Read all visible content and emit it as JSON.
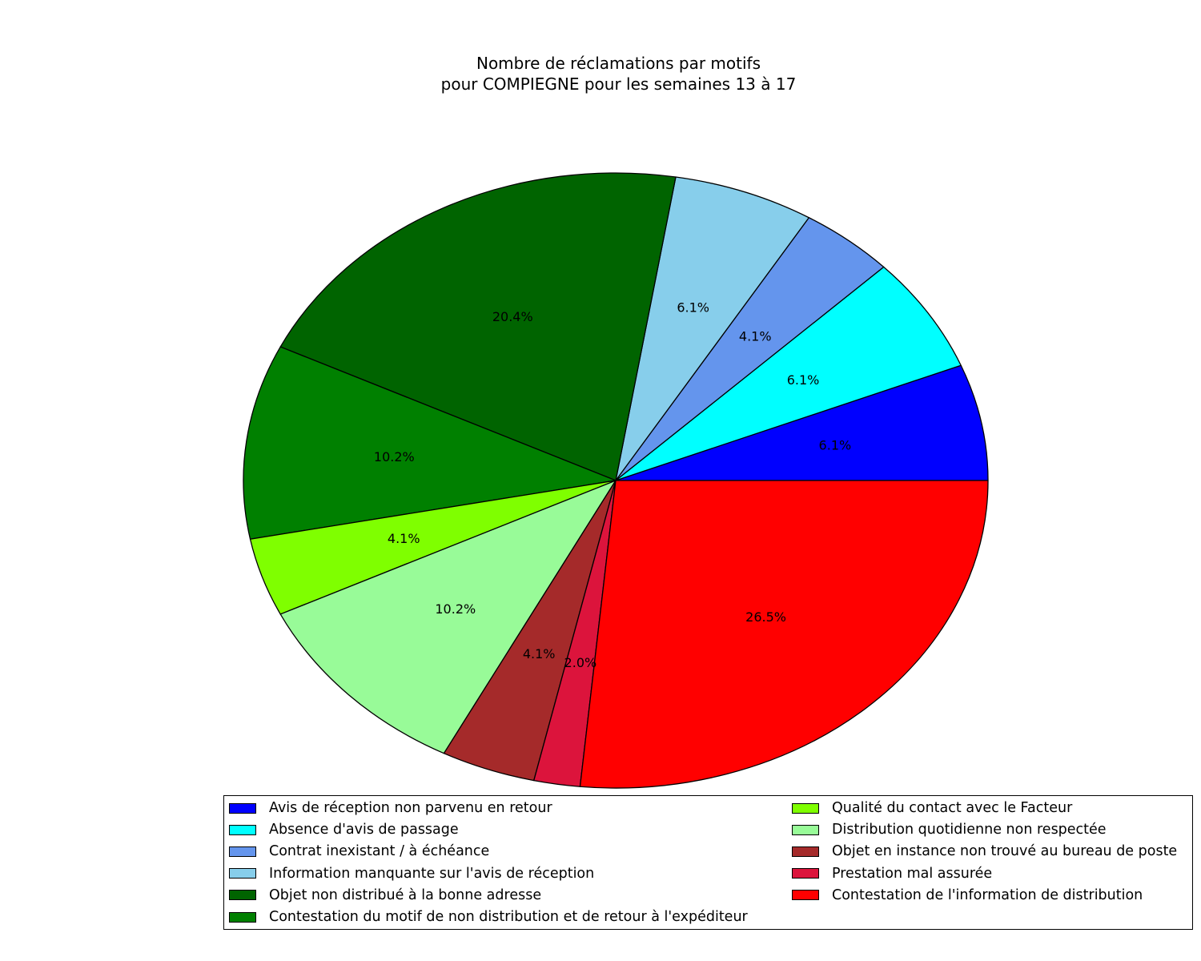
{
  "chart_data": {
    "type": "pie",
    "title": "Nombre de réclamations par motifs",
    "subtitle": "pour COMPIEGNE pour les semaines 13 à 17",
    "slices": [
      {
        "label": "Avis de réception non parvenu en retour",
        "value": 6.1,
        "pct_label": "6.1%",
        "color": "#0000ff"
      },
      {
        "label": "Absence d'avis de passage",
        "value": 6.1,
        "pct_label": "6.1%",
        "color": "#00ffff"
      },
      {
        "label": "Contrat inexistant / à échéance",
        "value": 4.1,
        "pct_label": "4.1%",
        "color": "#6495ed"
      },
      {
        "label": "Information manquante sur l'avis de réception",
        "value": 6.1,
        "pct_label": "6.1%",
        "color": "#87ceeb"
      },
      {
        "label": "Objet non distribué à la bonne adresse",
        "value": 20.4,
        "pct_label": "20.4%",
        "color": "#006400"
      },
      {
        "label": "Contestation du motif de non distribution et de retour à l'expéditeur",
        "value": 10.2,
        "pct_label": "10.2%",
        "color": "#008000"
      },
      {
        "label": "Qualité du contact avec le Facteur",
        "value": 4.1,
        "pct_label": "4.1%",
        "color": "#7fff00"
      },
      {
        "label": "Distribution quotidienne non respectée",
        "value": 10.2,
        "pct_label": "10.2%",
        "color": "#98fb98"
      },
      {
        "label": "Objet en instance non trouvé au bureau de poste",
        "value": 4.1,
        "pct_label": "4.1%",
        "color": "#a52a2a"
      },
      {
        "label": "Prestation mal assurée",
        "value": 2.0,
        "pct_label": "2.0%",
        "color": "#dc143c"
      },
      {
        "label": "Contestation de l'information de distribution",
        "value": 26.5,
        "pct_label": "26.5%",
        "color": "#ff0000"
      }
    ],
    "start_angle_deg": 0,
    "direction": "counterclockwise",
    "legend_position": "bottom"
  }
}
